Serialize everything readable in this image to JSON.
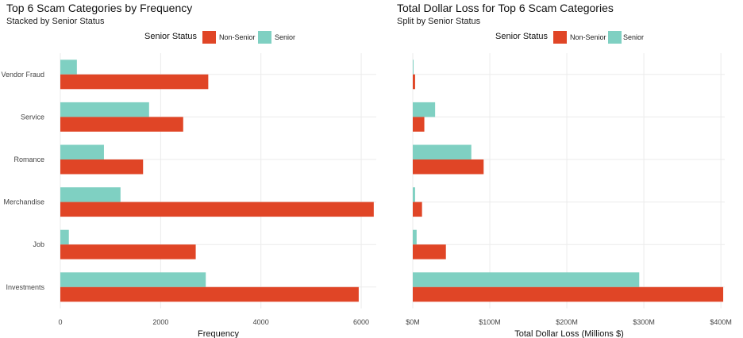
{
  "colors": {
    "non_senior": "#E04526",
    "senior": "#7FD0C2"
  },
  "chart_data": [
    {
      "type": "bar",
      "orientation": "horizontal",
      "title": "Top 6 Scam Categories by Frequency",
      "subtitle": "Stacked by Senior Status",
      "legend_title": "Senior Status",
      "legend_position": "top",
      "xlabel": "Frequency",
      "ylabel": "",
      "xlim": [
        0,
        6300
      ],
      "xticks": [
        0,
        2000,
        4000,
        6000
      ],
      "xtick_labels": [
        "0",
        "2000",
        "4000",
        "6000"
      ],
      "grid": true,
      "categories": [
        "Vendor Fraud",
        "Service",
        "Romance",
        "Merchandise",
        "Job",
        "Investments"
      ],
      "series": [
        {
          "name": "Non-Senior",
          "values": [
            2950,
            2450,
            1650,
            6250,
            2700,
            5950
          ]
        },
        {
          "name": "Senior",
          "values": [
            330,
            1770,
            870,
            1200,
            170,
            2900
          ]
        }
      ]
    },
    {
      "type": "bar",
      "orientation": "horizontal",
      "title": "Total Dollar Loss for Top 6 Scam Categories",
      "subtitle": "Split by Senior Status",
      "legend_title": "Senior Status",
      "legend_position": "top",
      "xlabel": "Total Dollar Loss (Millions $)",
      "ylabel": "",
      "xlim": [
        0,
        405
      ],
      "xticks": [
        0,
        100,
        200,
        300,
        400
      ],
      "xtick_labels": [
        "$0M",
        "$100M",
        "$200M",
        "$300M",
        "$400M"
      ],
      "grid": true,
      "categories": [
        "Vendor Fraud",
        "Service",
        "Romance",
        "Merchandise",
        "Job",
        "Investments"
      ],
      "series": [
        {
          "name": "Non-Senior",
          "values": [
            3,
            15,
            92,
            12,
            43,
            403
          ]
        },
        {
          "name": "Senior",
          "values": [
            1,
            29,
            76,
            3,
            5,
            294
          ]
        }
      ]
    }
  ]
}
